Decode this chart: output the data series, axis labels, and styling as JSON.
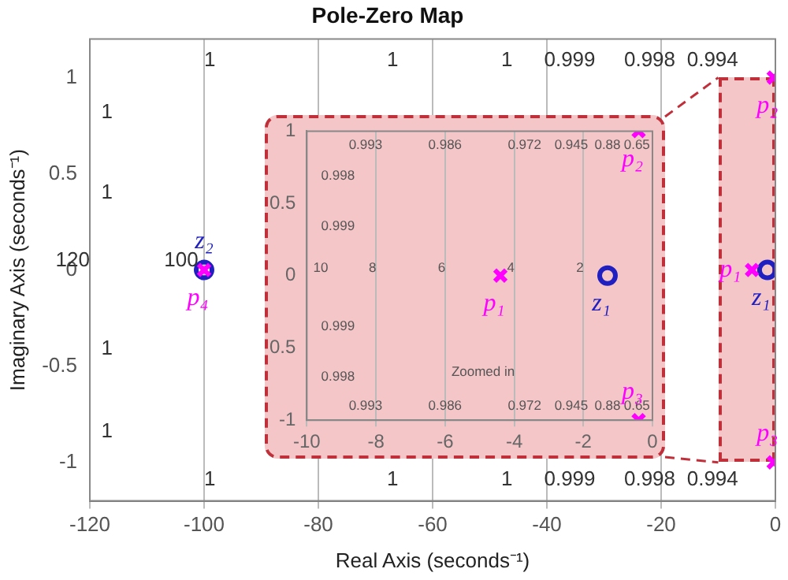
{
  "chart_data": [
    {
      "type": "scatter",
      "title": "Pole-Zero Map",
      "xlabel": "Real Axis (seconds⁻¹)",
      "ylabel": "Imaginary Axis (seconds⁻¹)",
      "xlim": [
        -120,
        0
      ],
      "ylim": [
        -1.2,
        1.2
      ],
      "xticks": [
        -120,
        -100,
        -80,
        -60,
        -40,
        -20,
        0
      ],
      "yticks": [
        -1,
        -0.5,
        0,
        0.5,
        1
      ],
      "grid": "x",
      "series": [
        {
          "color": "#ff00ff",
          "marker": "cross",
          "x": [
            -4.1,
            -0.3,
            -0.3,
            -100
          ],
          "values": [
            0,
            1,
            -1,
            0
          ],
          "value_labels": [
            "p₁",
            "p₂",
            "p₃",
            "p₄"
          ]
        },
        {
          "color": "#2020c0",
          "marker": "circle",
          "x": [
            -1.4,
            -100
          ],
          "values": [
            0,
            0
          ],
          "value_labels": [
            "z₁",
            "z₂"
          ]
        }
      ],
      "annotations": [
        "1",
        "1",
        "1",
        "0.999",
        "0.998",
        "0.994",
        "1",
        "1",
        "1",
        "0.999",
        "0.998",
        "0.994",
        "1",
        "1",
        "1",
        "1",
        "120",
        "100"
      ]
    },
    {
      "type": "scatter",
      "xlim": [
        -10,
        0
      ],
      "ylim": [
        -1,
        1
      ],
      "xticks": [
        -10,
        -8,
        -6,
        -4,
        -2,
        0
      ],
      "yticks": [
        {
          "value": -1,
          "label": "-1"
        },
        {
          "value": -0.5,
          "label": "0.5"
        },
        0,
        0.5,
        1
      ],
      "grid": "x",
      "series": [
        {
          "color": "#ff00ff",
          "marker": "cross",
          "x": [
            -4.4,
            -0.4,
            -0.4
          ],
          "values": [
            0,
            1,
            -1
          ],
          "value_labels": [
            "p₁",
            "p₂",
            "p₃"
          ]
        },
        {
          "color": "#2020c0",
          "marker": "circle",
          "x": [
            -1.3
          ],
          "values": [
            0
          ],
          "value_labels": [
            "z₁"
          ]
        }
      ],
      "annotations": [
        "0.993",
        "0.986",
        "0.972",
        "0.945",
        "0.88",
        "0.65",
        "0.998",
        "0.999",
        "0.999",
        "0.998",
        "0.993",
        "0.986",
        "0.972",
        "0.945",
        "0.88",
        "0.65",
        "10",
        "8",
        "6",
        "4",
        "2",
        "Zoomed in"
      ]
    }
  ]
}
